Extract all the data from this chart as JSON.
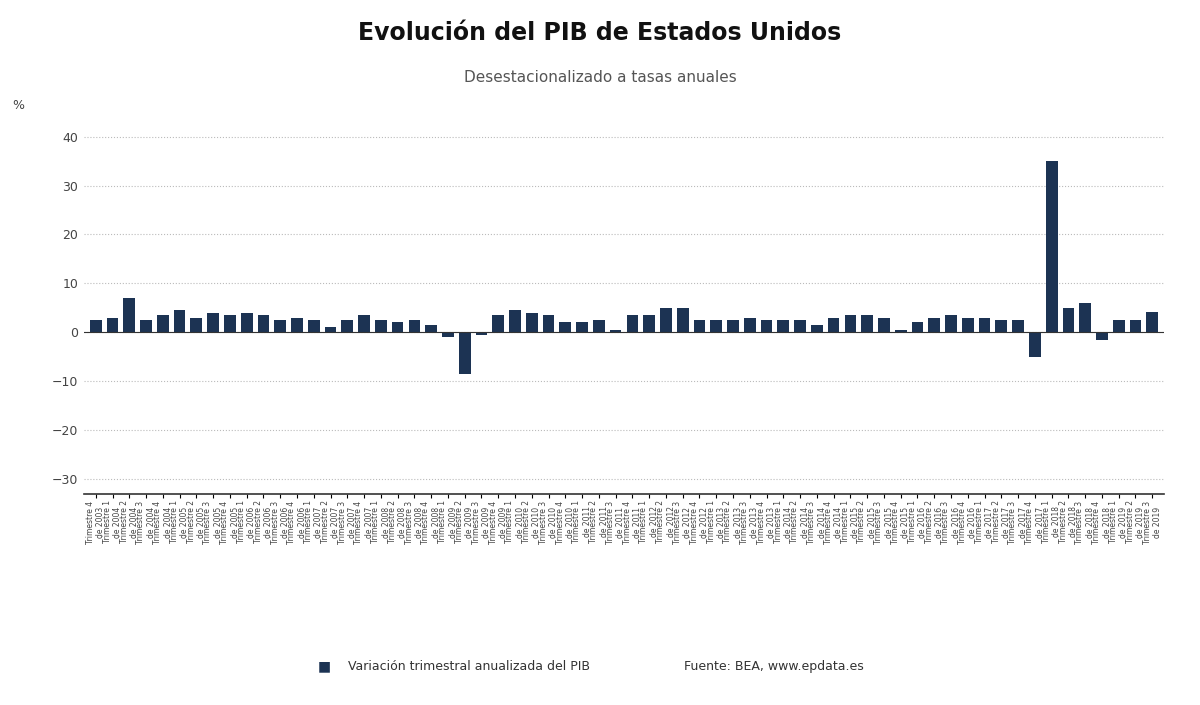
{
  "title": "Evolución del PIB de Estados Unidos",
  "subtitle": "Desestacionalizado a tasas anuales",
  "ylabel": "%",
  "bar_color": "#1c3353",
  "background_color": "#ffffff",
  "grid_color": "#bbbbbb",
  "ylim": [
    -33,
    42
  ],
  "yticks": [
    -30,
    -20,
    -10,
    0,
    10,
    20,
    30,
    40
  ],
  "legend_label": "Variación trimestral anualizada del PIB",
  "source_text": "Fuente: BEA, www.epdata.es",
  "values": [
    2.5,
    3.0,
    7.0,
    2.5,
    3.5,
    4.5,
    3.0,
    4.0,
    3.5,
    4.0,
    3.5,
    2.5,
    3.0,
    2.5,
    1.0,
    2.5,
    3.5,
    2.5,
    2.0,
    2.5,
    1.5,
    -1.0,
    -8.5,
    -0.5,
    3.5,
    4.5,
    4.0,
    3.5,
    2.0,
    2.0,
    2.5,
    0.5,
    3.5,
    3.5,
    5.0,
    5.0,
    2.5,
    2.5,
    2.5,
    3.0,
    2.5,
    2.5,
    2.5,
    1.5,
    3.0,
    3.5,
    3.5,
    3.0,
    0.5,
    2.0,
    3.0,
    3.5,
    3.0,
    3.0,
    2.5,
    2.5,
    -5.0,
    35.0,
    5.0,
    6.0,
    -1.5,
    2.5,
    2.5,
    4.1
  ],
  "labels": [
    "Trimestre 4\nde 2003",
    "Trimestre 1\nde 2004",
    "Trimestre 2\nde 2004",
    "Trimestre 3\nde 2004",
    "Trimestre 4\nde 2004",
    "Trimestre 1\nde 2005",
    "Trimestre 2\nde 2005",
    "Trimestre 3\nde 2005",
    "Trimestre 4\nde 2005",
    "Trimestre 1\nde 2006",
    "Trimestre 2\nde 2006",
    "Trimestre 3\nde 2006",
    "Trimestre 4\nde 2006",
    "Trimestre 1\nde 2007",
    "Trimestre 2\nde 2007",
    "Trimestre 3\nde 2007",
    "Trimestre 4\nde 2007",
    "Trimestre 1\nde 2008",
    "Trimestre 2\nde 2008",
    "Trimestre 3\nde 2008",
    "Trimestre 4\nde 2008",
    "Trimestre 1\nde 2009",
    "Trimestre 2\nde 2009",
    "Trimestre 3\nde 2009",
    "Trimestre 4\nde 2009",
    "Trimestre 1\nde 2010",
    "Trimestre 2\nde 2010",
    "Trimestre 3\nde 2010",
    "Trimestre 4\nde 2010",
    "Trimestre 1\nde 2011",
    "Trimestre 2\nde 2011",
    "Trimestre 3\nde 2011",
    "Trimestre 4\nde 2011",
    "Trimestre 1\nde 2012",
    "Trimestre 2\nde 2012",
    "Trimestre 3\nde 2012",
    "Trimestre 4\nde 2012",
    "Trimestre 1\nde 2013",
    "Trimestre 2\nde 2013",
    "Trimestre 3\nde 2013",
    "Trimestre 4\nde 2013",
    "Trimestre 1\nde 2014",
    "Trimestre 2\nde 2014",
    "Trimestre 3\nde 2014",
    "Trimestre 4\nde 2014",
    "Trimestre 1\nde 2015",
    "Trimestre 2\nde 2015",
    "Trimestre 3\nde 2015",
    "Trimestre 4\nde 2015",
    "Trimestre 1\nde 2016",
    "Trimestre 2\nde 2016",
    "Trimestre 3\nde 2016",
    "Trimestre 4\nde 2016",
    "Trimestre 1\nde 2017",
    "Trimestre 2\nde 2017",
    "Trimestre 3\nde 2017",
    "Trimestre 4\nde 2017",
    "Trimestre 1\nde 2018",
    "Trimestre 2\nde 2018",
    "Trimestre 3\nde 2018",
    "Trimestre 4\nde 2018",
    "Trimestre 1\nde 2019",
    "Trimestre 2\nde 2019",
    "Trimestre 3\nde 2019"
  ]
}
